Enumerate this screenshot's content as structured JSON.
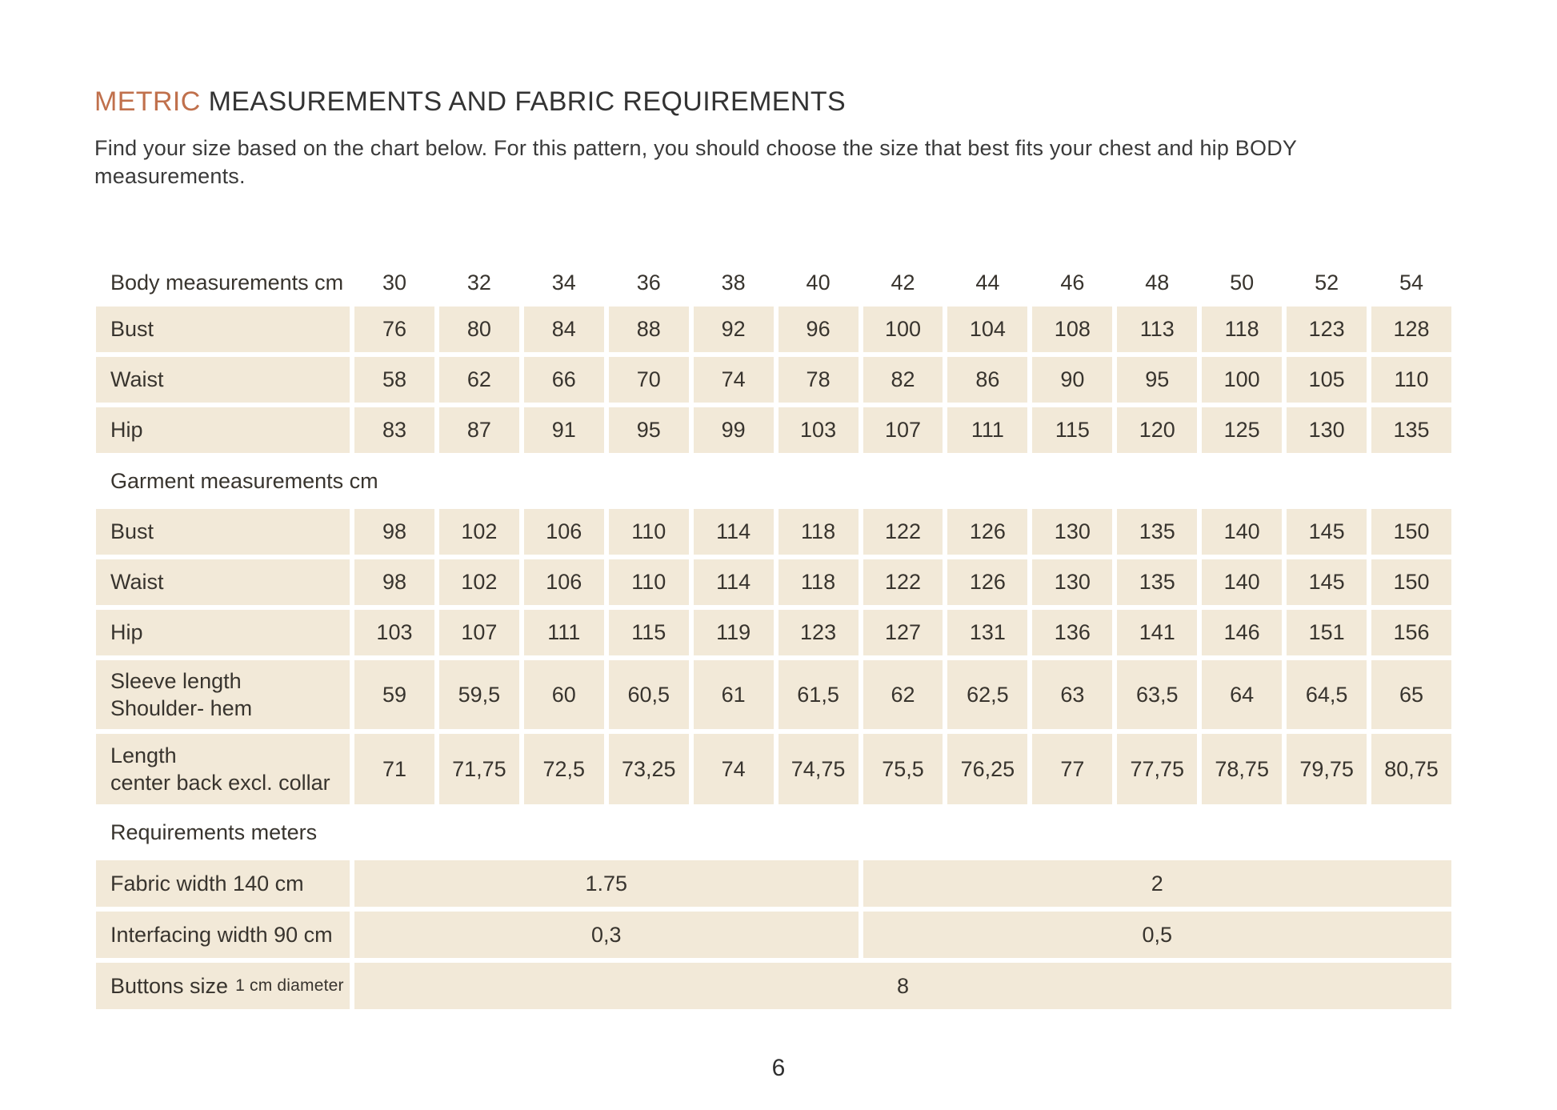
{
  "page": {
    "title_accent": "METRIC",
    "title_rest": " MEASUREMENTS AND FABRIC REQUIREMENTS",
    "subtitle": "Find your size based on the chart below. For this pattern, you should choose the size that best fits your chest and hip BODY measurements.",
    "page_number": "6"
  },
  "colors": {
    "accent": "#c0704c",
    "cell_background": "#f2e9d8",
    "text": "#38342e"
  },
  "table": {
    "sizes_header_label": "Body measurements cm",
    "sizes": [
      "30",
      "32",
      "34",
      "36",
      "38",
      "40",
      "42",
      "44",
      "46",
      "48",
      "50",
      "52",
      "54"
    ],
    "body_rows": [
      {
        "label": "Bust",
        "values": [
          "76",
          "80",
          "84",
          "88",
          "92",
          "96",
          "100",
          "104",
          "108",
          "113",
          "118",
          "123",
          "128"
        ]
      },
      {
        "label": "Waist",
        "values": [
          "58",
          "62",
          "66",
          "70",
          "74",
          "78",
          "82",
          "86",
          "90",
          "95",
          "100",
          "105",
          "110"
        ]
      },
      {
        "label": "Hip",
        "values": [
          "83",
          "87",
          "91",
          "95",
          "99",
          "103",
          "107",
          "111",
          "115",
          "120",
          "125",
          "130",
          "135"
        ]
      }
    ],
    "garment_section_label": "Garment measurements cm",
    "garment_rows": [
      {
        "label": "Bust",
        "values": [
          "98",
          "102",
          "106",
          "110",
          "114",
          "118",
          "122",
          "126",
          "130",
          "135",
          "140",
          "145",
          "150"
        ]
      },
      {
        "label": "Waist",
        "values": [
          "98",
          "102",
          "106",
          "110",
          "114",
          "118",
          "122",
          "126",
          "130",
          "135",
          "140",
          "145",
          "150"
        ]
      },
      {
        "label": "Hip",
        "values": [
          "103",
          "107",
          "111",
          "115",
          "119",
          "123",
          "127",
          "131",
          "136",
          "141",
          "146",
          "151",
          "156"
        ]
      },
      {
        "label": "Sleeve length",
        "label2": "Shoulder- hem",
        "values": [
          "59",
          "59,5",
          "60",
          "60,5",
          "61",
          "61,5",
          "62",
          "62,5",
          "63",
          "63,5",
          "64",
          "64,5",
          "65"
        ]
      },
      {
        "label": "Length",
        "label2": "center back excl. collar",
        "values": [
          "71",
          "71,75",
          "72,5",
          "73,25",
          "74",
          "74,75",
          "75,5",
          "76,25",
          "77",
          "77,75",
          "78,75",
          "79,75",
          "80,75"
        ]
      }
    ],
    "requirements_section_label": "Requirements meters",
    "requirement_rows": [
      {
        "label": "Fabric width 140 cm",
        "cells": [
          {
            "value": "1.75",
            "span": 6
          },
          {
            "value": "2",
            "span": 7
          }
        ]
      },
      {
        "label": "Interfacing width 90 cm",
        "cells": [
          {
            "value": "0,3",
            "span": 6
          },
          {
            "value": "0,5",
            "span": 7
          }
        ]
      },
      {
        "label": "Buttons size",
        "label_small": "1 cm diameter",
        "cells": [
          {
            "value": "8",
            "span": 13
          }
        ]
      }
    ]
  }
}
